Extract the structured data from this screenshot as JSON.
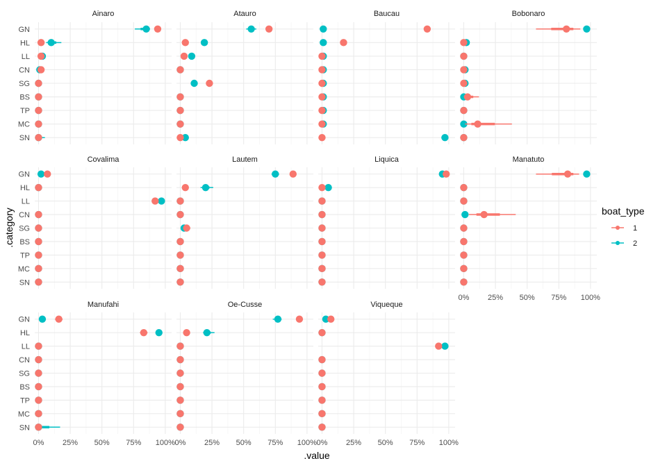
{
  "chart_data": {
    "type": "scatter",
    "x_label": ".value",
    "y_label": ".category",
    "categories": [
      "GN",
      "HL",
      "LL",
      "CN",
      "SG",
      "BS",
      "TP",
      "MC",
      "SN"
    ],
    "x_ticks": [
      0,
      0.25,
      0.5,
      0.75,
      1.0
    ],
    "x_tick_labels": [
      "0%",
      "25%",
      "50%",
      "75%",
      "100%"
    ],
    "xlim": [
      -0.03,
      1.05
    ],
    "legend": {
      "title": "boat_type",
      "position": "right",
      "entries": [
        {
          "label": "1",
          "color": "#F8766D"
        },
        {
          "label": "2",
          "color": "#00BFC4"
        }
      ]
    },
    "colors": {
      "1": "#F8766D",
      "2": "#00BFC4"
    },
    "draw_order": [
      "2",
      "1"
    ],
    "panels": [
      {
        "name": "Ainaro",
        "series": {
          "1": {
            "values": [
              0.94,
              0.02,
              0.02,
              0.02,
              0.0,
              0.0,
              0.0,
              0.0,
              0.0
            ],
            "lo": [
              0.94,
              0.02,
              0.01,
              0.02,
              0.0,
              0.0,
              0.0,
              0.0,
              0.0
            ],
            "hi": [
              0.94,
              0.02,
              0.03,
              0.02,
              0.0,
              0.0,
              0.0,
              0.0,
              0.0
            ]
          },
          "2": {
            "values": [
              0.85,
              0.1,
              0.03,
              0.01,
              0.0,
              0.0,
              0.0,
              0.0,
              0.0
            ],
            "lo": [
              0.76,
              0.06,
              0.02,
              0.0,
              0.0,
              0.0,
              0.0,
              0.0,
              0.0
            ],
            "hi": [
              0.88,
              0.18,
              0.05,
              0.02,
              0.0,
              0.0,
              0.0,
              0.0,
              0.05
            ]
          }
        }
      },
      {
        "name": "Atauro",
        "series": {
          "1": {
            "values": [
              0.7,
              0.04,
              0.03,
              0.0,
              0.23,
              0.0,
              0.0,
              0.0,
              0.0
            ],
            "lo": [
              0.68,
              0.04,
              0.03,
              0.0,
              0.21,
              0.0,
              0.0,
              0.0,
              0.0
            ],
            "hi": [
              0.72,
              0.04,
              0.03,
              0.0,
              0.25,
              0.0,
              0.0,
              0.0,
              0.0
            ]
          },
          "2": {
            "values": [
              0.56,
              0.19,
              0.09,
              0.0,
              0.11,
              0.0,
              0.0,
              0.0,
              0.04
            ],
            "lo": [
              0.52,
              0.17,
              0.08,
              0.0,
              0.11,
              0.0,
              0.0,
              0.0,
              0.02
            ],
            "hi": [
              0.6,
              0.21,
              0.1,
              0.0,
              0.11,
              0.0,
              0.0,
              0.0,
              0.06
            ]
          }
        }
      },
      {
        "name": "Baucau",
        "series": {
          "1": {
            "values": [
              0.83,
              0.17,
              0.0,
              0.0,
              0.0,
              0.0,
              0.0,
              0.0,
              0.0
            ],
            "lo": [
              0.83,
              0.17,
              0.0,
              0.0,
              0.0,
              0.0,
              0.0,
              0.0,
              0.0
            ],
            "hi": [
              0.83,
              0.17,
              0.0,
              0.0,
              0.0,
              0.0,
              0.0,
              0.0,
              0.0
            ]
          },
          "2": {
            "values": [
              0.01,
              0.01,
              0.01,
              0.01,
              0.01,
              0.01,
              0.01,
              0.01,
              0.97
            ],
            "lo": [
              0.01,
              0.01,
              0.01,
              0.01,
              0.01,
              0.01,
              0.01,
              0.01,
              0.97
            ],
            "hi": [
              0.01,
              0.01,
              0.01,
              0.01,
              0.01,
              0.01,
              0.01,
              0.01,
              0.97
            ]
          }
        }
      },
      {
        "name": "Bobonaro",
        "series": {
          "1": {
            "values": [
              0.81,
              0.0,
              0.0,
              0.0,
              0.0,
              0.03,
              0.0,
              0.11,
              0.0
            ],
            "lo": [
              0.57,
              0.0,
              0.0,
              0.0,
              0.0,
              0.0,
              0.0,
              0.01,
              0.0
            ],
            "hi": [
              0.92,
              0.0,
              0.0,
              0.0,
              0.0,
              0.12,
              0.0,
              0.38,
              0.0
            ]
          },
          "2": {
            "values": [
              0.97,
              0.02,
              0.0,
              0.01,
              0.01,
              0.0,
              0.0,
              0.0,
              0.0
            ],
            "lo": [
              0.97,
              0.02,
              0.0,
              0.01,
              0.01,
              0.0,
              0.0,
              0.0,
              0.0
            ],
            "hi": [
              0.97,
              0.02,
              0.0,
              0.01,
              0.01,
              0.0,
              0.0,
              0.0,
              0.0
            ]
          }
        }
      },
      {
        "name": "Covalima",
        "series": {
          "1": {
            "values": [
              0.07,
              0.0,
              0.92,
              0.0,
              0.0,
              0.0,
              0.0,
              0.0,
              0.0
            ],
            "lo": [
              0.07,
              0.0,
              0.92,
              0.0,
              0.0,
              0.0,
              0.0,
              0.0,
              0.0
            ],
            "hi": [
              0.07,
              0.0,
              0.92,
              0.0,
              0.0,
              0.0,
              0.0,
              0.0,
              0.0
            ]
          },
          "2": {
            "values": [
              0.02,
              0.0,
              0.97,
              0.0,
              0.0,
              0.0,
              0.0,
              0.0,
              0.0
            ],
            "lo": [
              0.02,
              0.0,
              0.97,
              0.0,
              0.0,
              0.0,
              0.0,
              0.0,
              0.0
            ],
            "hi": [
              0.02,
              0.0,
              0.97,
              0.0,
              0.0,
              0.0,
              0.0,
              0.0,
              0.0
            ]
          }
        }
      },
      {
        "name": "Lautem",
        "series": {
          "1": {
            "values": [
              0.89,
              0.04,
              0.0,
              0.0,
              0.05,
              0.0,
              0.0,
              0.0,
              0.0
            ],
            "lo": [
              0.89,
              0.04,
              0.0,
              0.0,
              0.04,
              0.0,
              0.0,
              0.0,
              0.0
            ],
            "hi": [
              0.89,
              0.04,
              0.0,
              0.0,
              0.08,
              0.0,
              0.0,
              0.0,
              0.0
            ]
          },
          "2": {
            "values": [
              0.75,
              0.2,
              0.0,
              0.0,
              0.03,
              0.0,
              0.0,
              0.0,
              0.0
            ],
            "lo": [
              0.72,
              0.16,
              0.0,
              0.0,
              0.02,
              0.0,
              0.0,
              0.0,
              0.0
            ],
            "hi": [
              0.78,
              0.26,
              0.0,
              0.0,
              0.05,
              0.0,
              0.0,
              0.0,
              0.0
            ]
          }
        }
      },
      {
        "name": "Liquica",
        "series": {
          "1": {
            "values": [
              0.98,
              0.0,
              0.0,
              0.0,
              0.0,
              0.0,
              0.0,
              0.0,
              0.0
            ],
            "lo": [
              0.98,
              0.0,
              0.0,
              0.0,
              0.0,
              0.0,
              0.0,
              0.0,
              0.0
            ],
            "hi": [
              0.98,
              0.0,
              0.0,
              0.0,
              0.0,
              0.0,
              0.0,
              0.0,
              0.0
            ]
          },
          "2": {
            "values": [
              0.95,
              0.05,
              0.0,
              0.0,
              0.0,
              0.0,
              0.0,
              0.0,
              0.0
            ],
            "lo": [
              0.95,
              0.05,
              0.0,
              0.0,
              0.0,
              0.0,
              0.0,
              0.0,
              0.0
            ],
            "hi": [
              0.95,
              0.05,
              0.0,
              0.0,
              0.0,
              0.0,
              0.0,
              0.0,
              0.0
            ]
          }
        }
      },
      {
        "name": "Manatuto",
        "series": {
          "1": {
            "values": [
              0.82,
              0.0,
              0.0,
              0.16,
              0.0,
              0.0,
              0.0,
              0.0,
              0.0
            ],
            "lo": [
              0.57,
              0.0,
              0.0,
              0.04,
              0.0,
              0.0,
              0.0,
              0.0,
              0.0
            ],
            "hi": [
              0.91,
              0.0,
              0.0,
              0.41,
              0.0,
              0.0,
              0.0,
              0.0,
              0.0
            ]
          },
          "2": {
            "values": [
              0.97,
              0.0,
              0.0,
              0.01,
              0.0,
              0.0,
              0.0,
              0.0,
              0.0
            ],
            "lo": [
              0.97,
              0.0,
              0.0,
              0.0,
              0.0,
              0.0,
              0.0,
              0.0,
              0.0
            ],
            "hi": [
              0.97,
              0.0,
              0.0,
              0.03,
              0.0,
              0.0,
              0.0,
              0.0,
              0.0
            ]
          }
        }
      },
      {
        "name": "Manufahi",
        "series": {
          "1": {
            "values": [
              0.16,
              0.83,
              0.0,
              0.0,
              0.0,
              0.0,
              0.0,
              0.0,
              0.0
            ],
            "lo": [
              0.13,
              0.8,
              0.0,
              0.0,
              0.0,
              0.0,
              0.0,
              0.0,
              0.0
            ],
            "hi": [
              0.19,
              0.86,
              0.0,
              0.0,
              0.0,
              0.0,
              0.0,
              0.0,
              0.0
            ]
          },
          "2": {
            "values": [
              0.03,
              0.95,
              0.0,
              0.0,
              0.0,
              0.0,
              0.0,
              0.0,
              0.0
            ],
            "lo": [
              0.03,
              0.95,
              0.0,
              0.0,
              0.0,
              0.0,
              0.0,
              0.0,
              0.0
            ],
            "hi": [
              0.03,
              0.95,
              0.0,
              0.0,
              0.0,
              0.0,
              0.0,
              0.0,
              0.17
            ]
          }
        }
      },
      {
        "name": "Oe-Cusse",
        "series": {
          "1": {
            "values": [
              0.94,
              0.05,
              0.0,
              0.0,
              0.0,
              0.0,
              0.0,
              0.0,
              0.0
            ],
            "lo": [
              0.94,
              0.05,
              0.0,
              0.0,
              0.0,
              0.0,
              0.0,
              0.0,
              0.0
            ],
            "hi": [
              0.94,
              0.05,
              0.0,
              0.0,
              0.0,
              0.0,
              0.0,
              0.0,
              0.0
            ]
          },
          "2": {
            "values": [
              0.77,
              0.21,
              0.0,
              0.0,
              0.0,
              0.0,
              0.0,
              0.0,
              0.0
            ],
            "lo": [
              0.73,
              0.18,
              0.0,
              0.0,
              0.0,
              0.0,
              0.0,
              0.0,
              0.0
            ],
            "hi": [
              0.8,
              0.27,
              0.0,
              0.0,
              0.0,
              0.0,
              0.0,
              0.0,
              0.0
            ]
          }
        }
      },
      {
        "name": "Viqueque",
        "series": {
          "1": {
            "values": [
              0.07,
              0.0,
              0.92,
              0.0,
              0.0,
              0.0,
              0.0,
              0.0,
              0.0
            ],
            "lo": [
              0.07,
              0.0,
              0.92,
              0.0,
              0.0,
              0.0,
              0.0,
              0.0,
              0.0
            ],
            "hi": [
              0.07,
              0.0,
              0.92,
              0.0,
              0.0,
              0.0,
              0.0,
              0.0,
              0.0
            ]
          },
          "2": {
            "values": [
              0.03,
              0.0,
              0.97,
              0.0,
              0.0,
              0.0,
              0.0,
              0.0,
              0.0
            ],
            "lo": [
              0.03,
              0.0,
              0.97,
              0.0,
              0.0,
              0.0,
              0.0,
              0.0,
              0.0
            ],
            "hi": [
              0.03,
              0.0,
              0.97,
              0.0,
              0.0,
              0.0,
              0.0,
              0.0,
              0.0
            ]
          }
        }
      }
    ]
  }
}
